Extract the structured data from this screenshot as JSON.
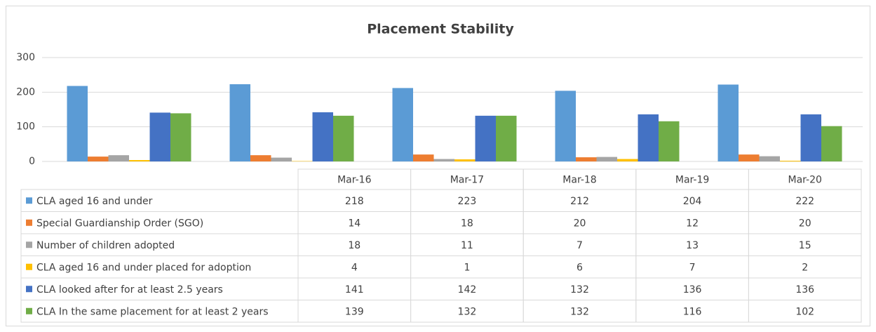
{
  "chart_data": {
    "type": "bar",
    "title": "Placement Stability",
    "categories": [
      "Mar-16",
      "Mar-17",
      "Mar-18",
      "Mar-19",
      "Mar-20"
    ],
    "series": [
      {
        "name": "CLA aged 16 and under",
        "color": "#5b9bd5",
        "values": [
          218,
          223,
          212,
          204,
          222
        ]
      },
      {
        "name": "Special Guardianship Order (SGO)",
        "color": "#ed7d31",
        "values": [
          14,
          18,
          20,
          12,
          20
        ]
      },
      {
        "name": "Number of children adopted",
        "color": "#a5a5a5",
        "values": [
          18,
          11,
          7,
          13,
          15
        ]
      },
      {
        "name": "CLA aged 16 and under placed for adoption",
        "color": "#ffc000",
        "values": [
          4,
          1,
          6,
          7,
          2
        ]
      },
      {
        "name": "CLA looked after for at least 2.5 years",
        "color": "#4472c4",
        "values": [
          141,
          142,
          132,
          136,
          136
        ]
      },
      {
        "name": "CLA In the same placement for at least 2 years",
        "color": "#70ad47",
        "values": [
          139,
          132,
          132,
          116,
          102
        ]
      }
    ],
    "ylim": [
      0,
      300
    ],
    "yticks": [
      0,
      100,
      200,
      300
    ],
    "grid": true
  }
}
